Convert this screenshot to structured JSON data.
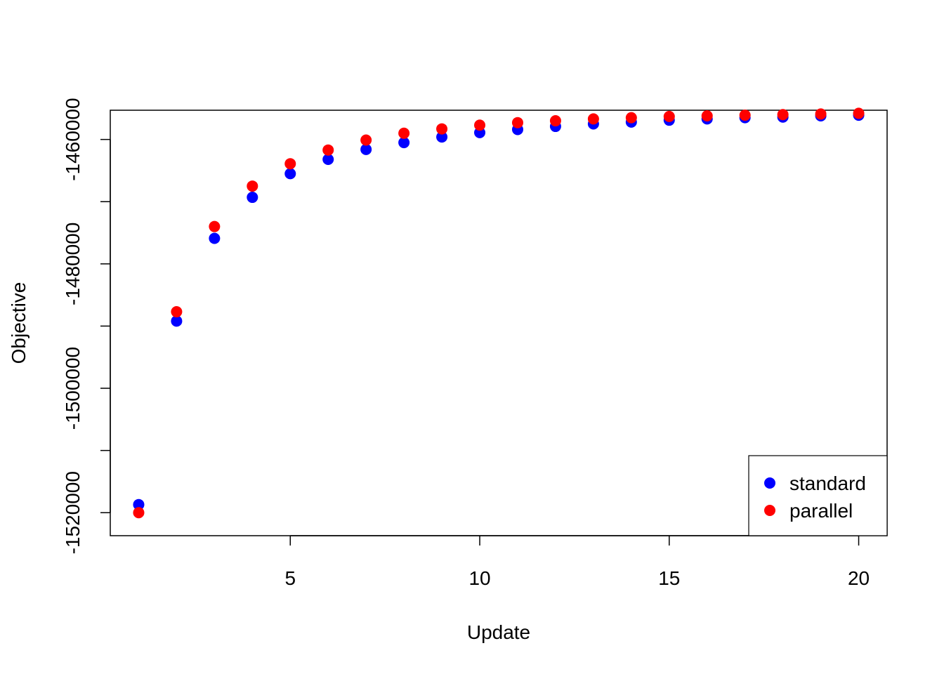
{
  "chart_data": {
    "type": "scatter",
    "title": "",
    "xlabel": "Update",
    "ylabel": "Objective",
    "xlim": [
      0.25,
      20.75
    ],
    "ylim": [
      -1523700,
      -1455300
    ],
    "x_ticks": [
      5,
      10,
      15,
      20
    ],
    "x_tick_labels": [
      "5",
      "10",
      "15",
      "20"
    ],
    "y_ticks": [
      -1520000,
      -1510000,
      -1500000,
      -1490000,
      -1480000,
      -1470000,
      -1460000
    ],
    "y_tick_labels": [
      "-1520000",
      "",
      "-1500000",
      "",
      "-1480000",
      "",
      "-1460000"
    ],
    "grid": false,
    "legend_position": "bottom-right",
    "x": [
      1,
      2,
      3,
      4,
      5,
      6,
      7,
      8,
      9,
      10,
      11,
      12,
      13,
      14,
      15,
      16,
      17,
      18,
      19,
      20
    ],
    "series": [
      {
        "name": "standard",
        "color": "#0000FF",
        "values": [
          -1518700,
          -1489200,
          -1475900,
          -1469300,
          -1465500,
          -1463200,
          -1461600,
          -1460500,
          -1459600,
          -1458900,
          -1458400,
          -1457900,
          -1457500,
          -1457200,
          -1456900,
          -1456700,
          -1456500,
          -1456400,
          -1456200,
          -1456100
        ]
      },
      {
        "name": "parallel",
        "color": "#FF0000",
        "values": [
          -1520000,
          -1487700,
          -1474000,
          -1467500,
          -1463900,
          -1461700,
          -1460100,
          -1459000,
          -1458300,
          -1457700,
          -1457300,
          -1457000,
          -1456700,
          -1456500,
          -1456300,
          -1456200,
          -1456100,
          -1456000,
          -1455900,
          -1455800
        ]
      }
    ]
  }
}
